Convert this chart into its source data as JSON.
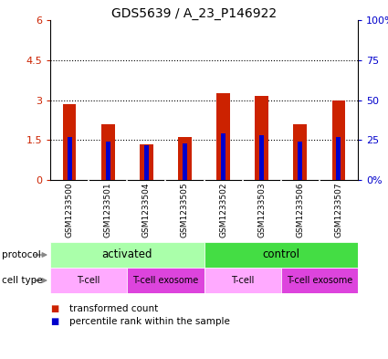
{
  "title": "GDS5639 / A_23_P146922",
  "samples": [
    "GSM1233500",
    "GSM1233501",
    "GSM1233504",
    "GSM1233505",
    "GSM1233502",
    "GSM1233503",
    "GSM1233506",
    "GSM1233507"
  ],
  "transformed_counts": [
    2.85,
    2.1,
    1.35,
    1.6,
    3.25,
    3.15,
    2.1,
    3.0
  ],
  "percentile_ranks_pct": [
    27,
    24,
    22,
    23,
    29,
    28,
    24,
    27
  ],
  "ylim_left": [
    0,
    6
  ],
  "ylim_right": [
    0,
    100
  ],
  "yticks_left": [
    0,
    1.5,
    3.0,
    4.5,
    6.0
  ],
  "ytick_labels_left": [
    "0",
    "1.5",
    "3",
    "4.5",
    "6"
  ],
  "yticks_right": [
    0,
    25,
    50,
    75,
    100
  ],
  "ytick_labels_right": [
    "0%",
    "25",
    "50",
    "75",
    "100%"
  ],
  "bar_color": "#cc2200",
  "blue_color": "#0000cc",
  "bg_sample_labels": "#c8c8c8",
  "protocol_configs": [
    {
      "start": 0,
      "end": 4,
      "color": "#aaffaa",
      "label": "activated"
    },
    {
      "start": 4,
      "end": 8,
      "color": "#44dd44",
      "label": "control"
    }
  ],
  "celltype_configs": [
    {
      "start": 0,
      "end": 2,
      "color": "#ffaaff",
      "label": "T-cell"
    },
    {
      "start": 2,
      "end": 4,
      "color": "#dd44dd",
      "label": "T-cell exosome"
    },
    {
      "start": 4,
      "end": 6,
      "color": "#ffaaff",
      "label": "T-cell"
    },
    {
      "start": 6,
      "end": 8,
      "color": "#dd44dd",
      "label": "T-cell exosome"
    }
  ],
  "legend_items": [
    {
      "color": "#cc2200",
      "label": "transformed count"
    },
    {
      "color": "#0000cc",
      "label": "percentile rank within the sample"
    }
  ],
  "row_labels": [
    "protocol",
    "cell type"
  ],
  "bar_width": 0.35,
  "blue_bar_width": 0.12
}
